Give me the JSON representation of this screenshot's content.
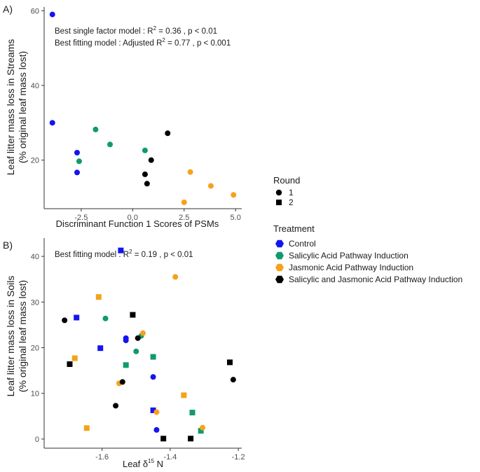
{
  "chart_data": [
    {
      "type": "scatter",
      "panel_label": "A)",
      "ylabel_line1": "Leaf  litter mass loss in Streams",
      "ylabel_line2": "(% original leaf mass lost)",
      "xlabel": "Discriminant Function 1 Scores of PSMs",
      "xlim": [
        -4.3,
        5.3
      ],
      "ylim": [
        7,
        61
      ],
      "xticks": [
        -2.5,
        0.0,
        2.5,
        5.0
      ],
      "xtick_labels": [
        "-2.5",
        "0.0",
        "2.5",
        "5.0"
      ],
      "yticks": [
        20,
        40,
        60
      ],
      "ytick_labels": [
        "20",
        "40",
        "60"
      ],
      "annotations": [
        {
          "pre": "Best single factor model : R",
          "sup": "2",
          "post": " = 0.36 , p < 0.01"
        },
        {
          "pre": "Best fitting model : Adjusted R",
          "sup": "2",
          "post": " = 0.77 , p < 0.001"
        }
      ],
      "points": [
        {
          "x": -3.9,
          "y": 59,
          "group": "Control",
          "round": "1"
        },
        {
          "x": -3.9,
          "y": 30,
          "group": "Control",
          "round": "1"
        },
        {
          "x": -2.7,
          "y": 22,
          "group": "Control",
          "round": "1"
        },
        {
          "x": -2.7,
          "y": 16.7,
          "group": "Control",
          "round": "1"
        },
        {
          "x": -1.8,
          "y": 28.2,
          "group": "Salicylic",
          "round": "1"
        },
        {
          "x": -1.1,
          "y": 24.2,
          "group": "Salicylic",
          "round": "1"
        },
        {
          "x": -2.6,
          "y": 19.7,
          "group": "Salicylic",
          "round": "1"
        },
        {
          "x": 0.6,
          "y": 22.6,
          "group": "Salicylic",
          "round": "1"
        },
        {
          "x": 1.7,
          "y": 27.2,
          "group": "Both",
          "round": "1"
        },
        {
          "x": 0.9,
          "y": 20.0,
          "group": "Both",
          "round": "1"
        },
        {
          "x": 0.6,
          "y": 16.2,
          "group": "Both",
          "round": "1"
        },
        {
          "x": 0.7,
          "y": 13.7,
          "group": "Both",
          "round": "1"
        },
        {
          "x": 2.8,
          "y": 16.8,
          "group": "Jasmonic",
          "round": "1"
        },
        {
          "x": 3.8,
          "y": 13.1,
          "group": "Jasmonic",
          "round": "1"
        },
        {
          "x": 4.9,
          "y": 10.7,
          "group": "Jasmonic",
          "round": "1"
        },
        {
          "x": 2.5,
          "y": 8.7,
          "group": "Jasmonic",
          "round": "1"
        }
      ]
    },
    {
      "type": "scatter",
      "panel_label": "B)",
      "ylabel_line1": "Leaf  litter mass loss in Soils",
      "ylabel_line2": "(% original leaf mass lost)",
      "xlabel_pre": "Leaf δ",
      "xlabel_sup": "15",
      "xlabel_post": " N",
      "xlim": [
        -1.77,
        -1.19
      ],
      "ylim": [
        -2,
        44
      ],
      "xticks": [
        -1.6,
        -1.4,
        -1.2
      ],
      "xtick_labels": [
        "-1.6",
        "-1.4",
        "-1.2"
      ],
      "yticks": [
        0,
        10,
        20,
        30,
        40
      ],
      "ytick_labels": [
        "0",
        "10",
        "20",
        "30",
        "40"
      ],
      "annotations": [
        {
          "pre": "Best fitting model : R",
          "sup": "2",
          "post": " = 0.19 , p < 0.01"
        }
      ],
      "points": [
        {
          "x": -1.545,
          "y": 41.3,
          "group": "Control",
          "round": "2"
        },
        {
          "x": -1.675,
          "y": 26.6,
          "group": "Control",
          "round": "2"
        },
        {
          "x": -1.605,
          "y": 19.9,
          "group": "Control",
          "round": "2"
        },
        {
          "x": -1.53,
          "y": 21.6,
          "group": "Control",
          "round": "1"
        },
        {
          "x": -1.53,
          "y": 22.1,
          "group": "Control",
          "round": "1"
        },
        {
          "x": -1.45,
          "y": 13.6,
          "group": "Control",
          "round": "1"
        },
        {
          "x": -1.45,
          "y": 6.3,
          "group": "Control",
          "round": "2"
        },
        {
          "x": -1.44,
          "y": 2.0,
          "group": "Control",
          "round": "1"
        },
        {
          "x": -1.59,
          "y": 26.4,
          "group": "Salicylic",
          "round": "1"
        },
        {
          "x": -1.5,
          "y": 19.2,
          "group": "Salicylic",
          "round": "1"
        },
        {
          "x": -1.53,
          "y": 16.2,
          "group": "Salicylic",
          "round": "2"
        },
        {
          "x": -1.485,
          "y": 22.6,
          "group": "Salicylic",
          "round": "1"
        },
        {
          "x": -1.45,
          "y": 18.0,
          "group": "Salicylic",
          "round": "2"
        },
        {
          "x": -1.335,
          "y": 5.8,
          "group": "Salicylic",
          "round": "2"
        },
        {
          "x": -1.31,
          "y": 1.8,
          "group": "Salicylic",
          "round": "2"
        },
        {
          "x": -1.385,
          "y": 35.5,
          "group": "Jasmonic",
          "round": "1"
        },
        {
          "x": -1.61,
          "y": 31.1,
          "group": "Jasmonic",
          "round": "2"
        },
        {
          "x": -1.68,
          "y": 17.7,
          "group": "Jasmonic",
          "round": "2"
        },
        {
          "x": -1.48,
          "y": 23.2,
          "group": "Jasmonic",
          "round": "1"
        },
        {
          "x": -1.55,
          "y": 12.2,
          "group": "Jasmonic",
          "round": "1"
        },
        {
          "x": -1.44,
          "y": 5.9,
          "group": "Jasmonic",
          "round": "1"
        },
        {
          "x": -1.36,
          "y": 9.6,
          "group": "Jasmonic",
          "round": "2"
        },
        {
          "x": -1.645,
          "y": 2.4,
          "group": "Jasmonic",
          "round": "2"
        },
        {
          "x": -1.305,
          "y": 2.5,
          "group": "Jasmonic",
          "round": "1"
        },
        {
          "x": -1.71,
          "y": 26.0,
          "group": "Both",
          "round": "1"
        },
        {
          "x": -1.695,
          "y": 16.4,
          "group": "Both",
          "round": "2"
        },
        {
          "x": -1.51,
          "y": 27.2,
          "group": "Both",
          "round": "2"
        },
        {
          "x": -1.495,
          "y": 22.1,
          "group": "Both",
          "round": "1"
        },
        {
          "x": -1.54,
          "y": 12.5,
          "group": "Both",
          "round": "1"
        },
        {
          "x": -1.56,
          "y": 7.3,
          "group": "Both",
          "round": "1"
        },
        {
          "x": -1.42,
          "y": 0.1,
          "group": "Both",
          "round": "2"
        },
        {
          "x": -1.34,
          "y": 0.1,
          "group": "Both",
          "round": "2"
        },
        {
          "x": -1.225,
          "y": 16.8,
          "group": "Both",
          "round": "2"
        },
        {
          "x": -1.215,
          "y": 13.0,
          "group": "Both",
          "round": "1"
        }
      ]
    }
  ],
  "legend": {
    "round_title": "Round",
    "round_items": [
      {
        "label": "1",
        "shape": "circle"
      },
      {
        "label": "2",
        "shape": "square"
      }
    ],
    "treatment_title": "Treatment",
    "treatment_items": [
      {
        "key": "Control",
        "label": "Control",
        "color": "#1414f0"
      },
      {
        "key": "Salicylic",
        "label": "Salicylic Acid Pathway Induction",
        "color": "#109a6e"
      },
      {
        "key": "Jasmonic",
        "label": "Jasmonic Acid Pathway Induction",
        "color": "#f5a21b"
      },
      {
        "key": "Both",
        "label": "Salicylic and Jasmonic Acid Pathway Induction",
        "color": "#000000"
      }
    ]
  }
}
